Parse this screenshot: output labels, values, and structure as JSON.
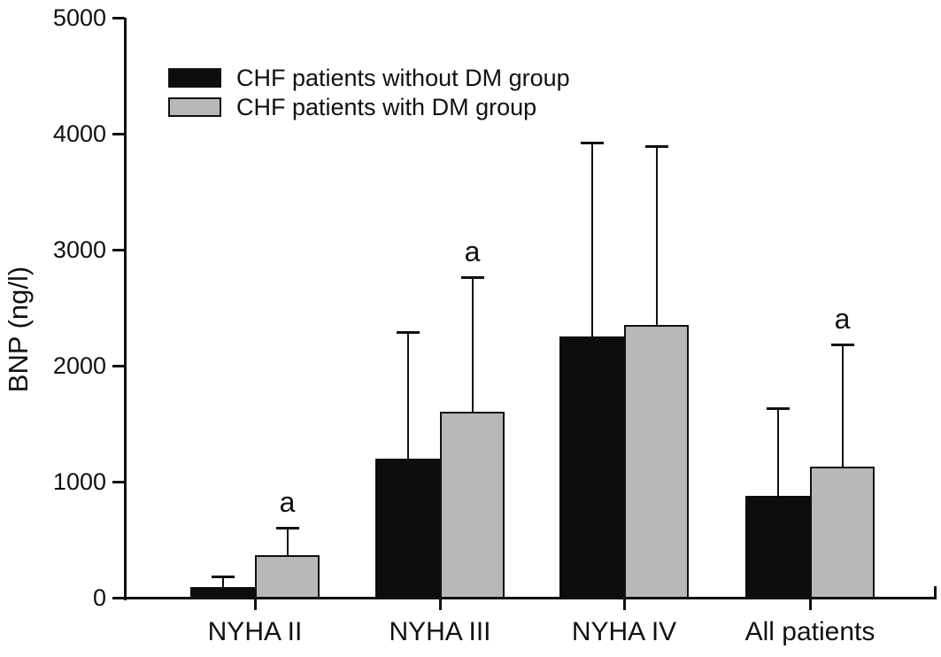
{
  "figure": {
    "background": "#ffffff",
    "axis_color": "#111111"
  },
  "chart_data": {
    "type": "bar",
    "title": "",
    "ylabel": "BNP (ng/l)",
    "xlabel": "",
    "ylim": [
      0,
      5000
    ],
    "yticks": [
      "0",
      "1000",
      "2000",
      "3000",
      "4000",
      "5000"
    ],
    "ytick_values": [
      0,
      1000,
      2000,
      3000,
      4000,
      5000
    ],
    "categories": [
      "NYHA II",
      "NYHA III",
      "NYHA IV",
      "All patients"
    ],
    "grid": false,
    "legend_position": "inside-top-left",
    "error_bars": "upper-only-with-caps",
    "series": [
      {
        "name": "CHF patients without DM group",
        "color": "#0d0d0d",
        "values": [
          90,
          1200,
          2250,
          880
        ],
        "error_top": [
          185,
          2290,
          3920,
          1630
        ],
        "annotations": [
          "",
          "",
          "",
          ""
        ]
      },
      {
        "name": "CHF patients with DM group",
        "color": "#b8b8b8",
        "values": [
          370,
          1600,
          2350,
          1130
        ],
        "error_top": [
          600,
          2760,
          3890,
          2180
        ],
        "annotations": [
          "a",
          "a",
          "",
          "a"
        ]
      }
    ]
  }
}
